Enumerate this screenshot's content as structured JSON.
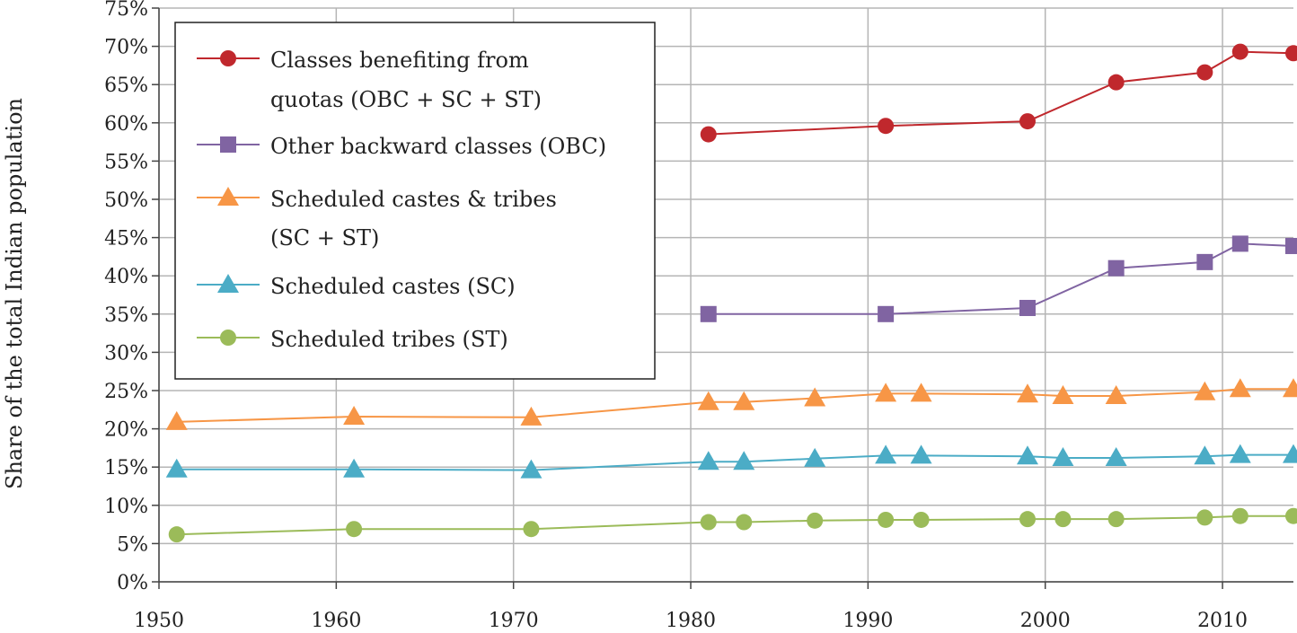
{
  "chart_data": {
    "type": "line",
    "title": "",
    "xlabel": "",
    "ylabel": "Share of the total Indian population",
    "xlim": [
      1950,
      2014
    ],
    "ylim": [
      0,
      75
    ],
    "x_ticks": [
      "1950",
      "1960",
      "1970",
      "1980",
      "1990",
      "2000",
      "2010"
    ],
    "y_ticks": [
      "0%",
      "5%",
      "10%",
      "15%",
      "20%",
      "25%",
      "30%",
      "35%",
      "40%",
      "45%",
      "50%",
      "55%",
      "60%",
      "65%",
      "70%",
      "75%"
    ],
    "grid": true,
    "legend_position": "top-left",
    "series": [
      {
        "name": "Classes benefiting from quotas (OBC + SC + ST)",
        "legend_lines": [
          "Classes benefiting from",
          "quotas (OBC + SC + ST)"
        ],
        "color": "#c0282d",
        "marker": "circle",
        "x": [
          1981,
          1991,
          1999,
          2004,
          2009,
          2011,
          2014
        ],
        "y": [
          58.5,
          59.6,
          60.2,
          65.3,
          66.6,
          69.3,
          69.1
        ]
      },
      {
        "name": "Other backward classes (OBC)",
        "legend_lines": [
          "Other backward classes (OBC)"
        ],
        "color": "#8064a2",
        "marker": "square",
        "x": [
          1981,
          1991,
          1999,
          2004,
          2009,
          2011,
          2014
        ],
        "y": [
          35.0,
          35.0,
          35.8,
          41.0,
          41.8,
          44.2,
          43.9
        ]
      },
      {
        "name": "Scheduled castes & tribes (SC + ST)",
        "legend_lines": [
          "Scheduled castes & tribes",
          "(SC + ST)"
        ],
        "color": "#f79646",
        "marker": "triangle",
        "x": [
          1951,
          1961,
          1971,
          1981,
          1983,
          1987,
          1991,
          1993,
          1999,
          2001,
          2004,
          2009,
          2011,
          2014
        ],
        "y": [
          20.9,
          21.6,
          21.5,
          23.5,
          23.5,
          24.0,
          24.6,
          24.6,
          24.5,
          24.3,
          24.3,
          24.8,
          25.2,
          25.2
        ]
      },
      {
        "name": "Scheduled castes (SC)",
        "legend_lines": [
          "Scheduled castes (SC)"
        ],
        "color": "#4bacc6",
        "marker": "triangle",
        "x": [
          1951,
          1961,
          1971,
          1981,
          1983,
          1987,
          1991,
          1993,
          1999,
          2001,
          2004,
          2009,
          2011,
          2014
        ],
        "y": [
          14.7,
          14.7,
          14.6,
          15.7,
          15.7,
          16.1,
          16.5,
          16.5,
          16.4,
          16.2,
          16.2,
          16.4,
          16.6,
          16.6
        ]
      },
      {
        "name": "Scheduled tribes (ST)",
        "legend_lines": [
          "Scheduled tribes (ST)"
        ],
        "color": "#9bbb59",
        "marker": "circle",
        "x": [
          1951,
          1961,
          1971,
          1981,
          1983,
          1987,
          1991,
          1993,
          1999,
          2001,
          2004,
          2009,
          2011,
          2014
        ],
        "y": [
          6.2,
          6.9,
          6.9,
          7.8,
          7.8,
          8.0,
          8.1,
          8.1,
          8.2,
          8.2,
          8.2,
          8.4,
          8.6,
          8.6
        ]
      }
    ]
  }
}
